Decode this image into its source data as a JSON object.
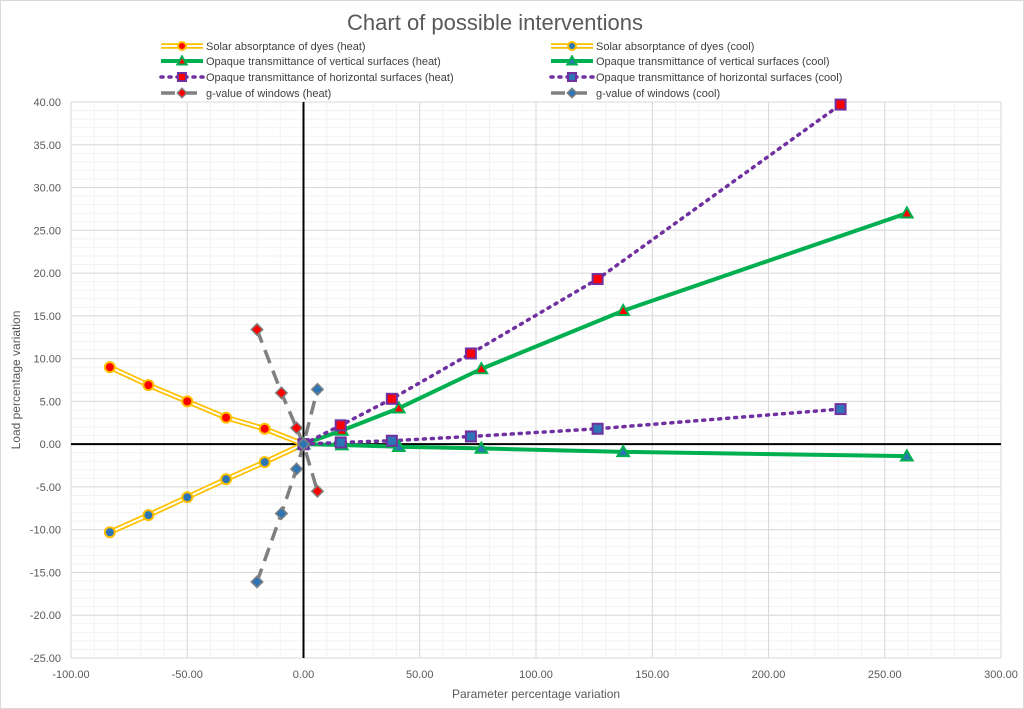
{
  "chart_data": {
    "type": "line",
    "title": "Chart of possible interventions",
    "xlabel": "Parameter percentage variation",
    "ylabel": "Load percentage variation",
    "xlim": [
      -100,
      300
    ],
    "ylim": [
      -25,
      40
    ],
    "x_ticks": [
      -100,
      -50,
      0,
      50,
      100,
      150,
      200,
      250,
      300
    ],
    "y_ticks": [
      -25,
      -20,
      -15,
      -10,
      -5,
      0,
      5,
      10,
      15,
      20,
      25,
      30,
      35,
      40
    ],
    "x_tick_labels": [
      "-100.00",
      "-50.00",
      "0.00",
      "50.00",
      "100.00",
      "150.00",
      "200.00",
      "250.00",
      "300.00"
    ],
    "y_tick_labels": [
      "-25.00",
      "-20.00",
      "-15.00",
      "-10.00",
      "-5.00",
      "0.00",
      "5.00",
      "10.00",
      "15.00",
      "20.00",
      "25.00",
      "30.00",
      "35.00",
      "40.00"
    ],
    "grid": true,
    "legend_position": "top",
    "series": [
      {
        "name": "Solar absorptance of dyes (heat)",
        "line": "double",
        "line_color": "#ffc000",
        "marker": "circle",
        "marker_fill": "#ff0000",
        "marker_edge": "#ffc000",
        "points": [
          [
            -83.3,
            9.0
          ],
          [
            -66.7,
            6.9
          ],
          [
            -50.0,
            5.0
          ],
          [
            -33.3,
            3.1
          ],
          [
            -16.7,
            1.8
          ],
          [
            0,
            0
          ]
        ]
      },
      {
        "name": "Solar absorptance of dyes (cool)",
        "line": "double",
        "line_color": "#ffc000",
        "marker": "circle",
        "marker_fill": "#2e75b6",
        "marker_edge": "#ffc000",
        "points": [
          [
            -83.3,
            -10.3
          ],
          [
            -66.7,
            -8.3
          ],
          [
            -50.0,
            -6.2
          ],
          [
            -33.3,
            -4.1
          ],
          [
            -16.7,
            -2.1
          ],
          [
            0,
            0
          ]
        ]
      },
      {
        "name": "Opaque transmittance of vertical surfaces (heat)",
        "line": "solid",
        "line_color": "#00b050",
        "marker": "triangle",
        "marker_fill": "#ff0000",
        "marker_edge": "#00b050",
        "points": [
          [
            0,
            0
          ],
          [
            16.5,
            1.6
          ],
          [
            41.0,
            4.2
          ],
          [
            76.5,
            8.8
          ],
          [
            137.5,
            15.6
          ],
          [
            259.5,
            27.0
          ]
        ]
      },
      {
        "name": "Opaque transmittance of vertical surfaces (cool)",
        "line": "solid",
        "line_color": "#00b050",
        "marker": "triangle",
        "marker_fill": "#2e75b6",
        "marker_edge": "#00b050",
        "points": [
          [
            0,
            0
          ],
          [
            16.5,
            -0.1
          ],
          [
            41.0,
            -0.3
          ],
          [
            76.5,
            -0.5
          ],
          [
            137.5,
            -0.9
          ],
          [
            259.5,
            -1.4
          ]
        ]
      },
      {
        "name": "Opaque transmittance of horizontal surfaces (heat)",
        "line": "dotted",
        "line_color": "#7030a0",
        "marker": "square",
        "marker_fill": "#ff0000",
        "marker_edge": "#7030a0",
        "points": [
          [
            0,
            0
          ],
          [
            16.0,
            2.2
          ],
          [
            38.0,
            5.3
          ],
          [
            72.0,
            10.6
          ],
          [
            126.5,
            19.3
          ],
          [
            231.0,
            39.7
          ]
        ]
      },
      {
        "name": "Opaque transmittance of horizontal surfaces (cool)",
        "line": "dotted",
        "line_color": "#7030a0",
        "marker": "square",
        "marker_fill": "#2e75b6",
        "marker_edge": "#7030a0",
        "points": [
          [
            0,
            0
          ],
          [
            16.0,
            0.2
          ],
          [
            38.0,
            0.4
          ],
          [
            72.0,
            0.9
          ],
          [
            126.5,
            1.8
          ],
          [
            231.0,
            4.1
          ]
        ]
      },
      {
        "name": "g-value of windows (heat)",
        "line": "dashed",
        "line_color": "#808080",
        "marker": "diamond",
        "marker_fill": "#ff0000",
        "marker_edge": "#808080",
        "points": [
          [
            -20.0,
            13.4
          ],
          [
            -9.5,
            6.0
          ],
          [
            -3.0,
            1.9
          ],
          [
            0,
            0
          ],
          [
            6.0,
            -5.5
          ]
        ]
      },
      {
        "name": "g-value of windows (cool)",
        "line": "dashed",
        "line_color": "#808080",
        "marker": "diamond",
        "marker_fill": "#2e75b6",
        "marker_edge": "#808080",
        "points": [
          [
            -20.0,
            -16.1
          ],
          [
            -9.5,
            -8.1
          ],
          [
            -3.0,
            -2.9
          ],
          [
            0,
            0
          ],
          [
            6.0,
            6.4
          ]
        ]
      }
    ]
  }
}
